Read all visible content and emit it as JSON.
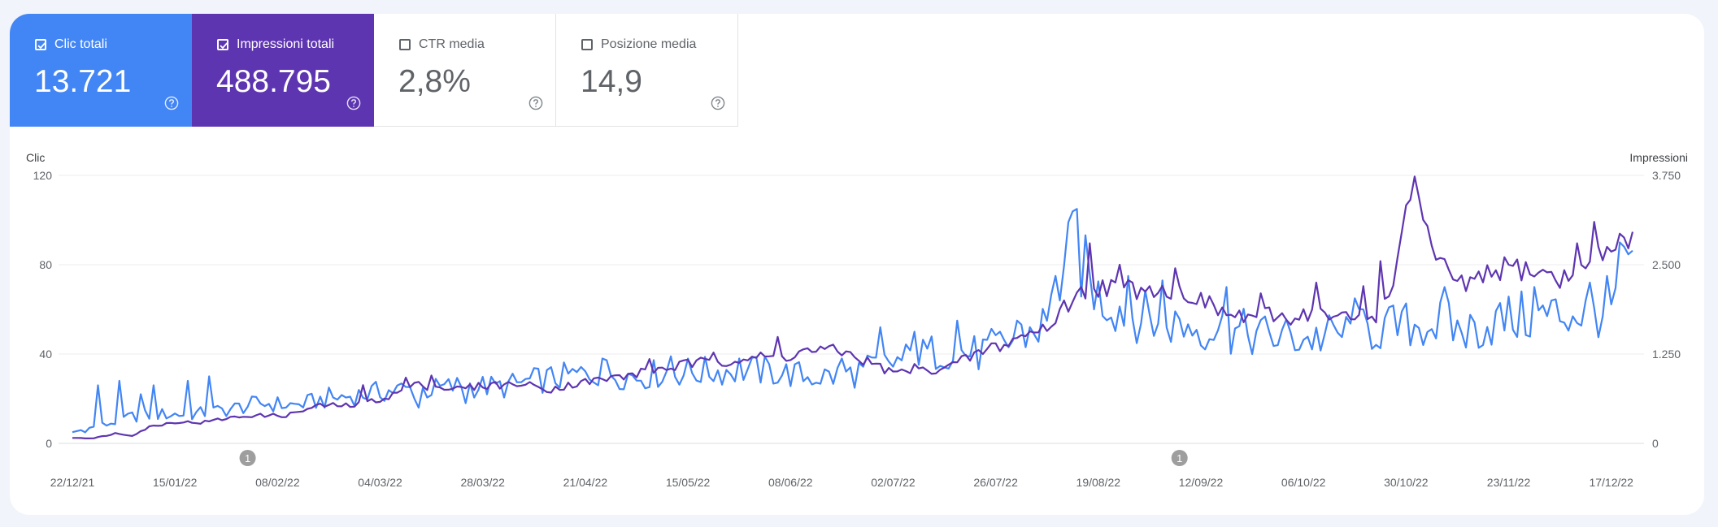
{
  "metrics": [
    {
      "label": "Clic totali",
      "value": "13.721",
      "checked": true,
      "color": "#4285f4"
    },
    {
      "label": "Impressioni totali",
      "value": "488.795",
      "checked": true,
      "color": "#5e35b1"
    },
    {
      "label": "CTR media",
      "value": "2,8%",
      "checked": false
    },
    {
      "label": "Posizione media",
      "value": "14,9",
      "checked": false
    }
  ],
  "chart_data": {
    "type": "line",
    "left_axis_title": "Clic",
    "right_axis_title": "Impressioni",
    "left_ticks": [
      "120",
      "80",
      "40",
      "0"
    ],
    "right_ticks": [
      "3.750",
      "2.500",
      "1.250",
      "0"
    ],
    "ylim_left": [
      0,
      120
    ],
    "ylim_right": [
      0,
      3750
    ],
    "x_labels": [
      "22/12/21",
      "15/01/22",
      "08/02/22",
      "04/03/22",
      "28/03/22",
      "21/04/22",
      "15/05/22",
      "08/06/22",
      "02/07/22",
      "26/07/22",
      "19/08/22",
      "12/09/22",
      "06/10/22",
      "30/10/22",
      "23/11/22",
      "17/12/22"
    ],
    "annotations": [
      {
        "label": "1",
        "date": "01/02/22"
      },
      {
        "label": "1",
        "date": "07/09/22"
      }
    ],
    "grid": true,
    "series": [
      {
        "name": "Clic totali",
        "axis": "left",
        "color": "#4285f4",
        "keypoints": [
          [
            0,
            5
          ],
          [
            7,
            8
          ],
          [
            14,
            12
          ],
          [
            21,
            13
          ],
          [
            28,
            13
          ],
          [
            36,
            15
          ],
          [
            44,
            18
          ],
          [
            52,
            17
          ],
          [
            60,
            20
          ],
          [
            68,
            22
          ],
          [
            76,
            24
          ],
          [
            84,
            24
          ],
          [
            92,
            26
          ],
          [
            100,
            25
          ],
          [
            108,
            28
          ],
          [
            116,
            30
          ],
          [
            124,
            32
          ],
          [
            132,
            30
          ],
          [
            140,
            32
          ],
          [
            148,
            32
          ],
          [
            156,
            33
          ],
          [
            164,
            32
          ],
          [
            172,
            30
          ],
          [
            180,
            30
          ],
          [
            188,
            34
          ],
          [
            196,
            38
          ],
          [
            204,
            42
          ],
          [
            212,
            40
          ],
          [
            220,
            46
          ],
          [
            228,
            54
          ],
          [
            234,
            88
          ],
          [
            240,
            66
          ],
          [
            248,
            58
          ],
          [
            256,
            54
          ],
          [
            264,
            52
          ],
          [
            272,
            50
          ],
          [
            280,
            48
          ],
          [
            290,
            47
          ],
          [
            300,
            50
          ],
          [
            310,
            52
          ],
          [
            318,
            54
          ],
          [
            326,
            50
          ],
          [
            334,
            55
          ],
          [
            342,
            57
          ],
          [
            350,
            58
          ],
          [
            360,
            60
          ],
          [
            365,
            85
          ]
        ],
        "spikes": [
          [
            6,
            26
          ],
          [
            11,
            28
          ],
          [
            16,
            22
          ],
          [
            19,
            26
          ],
          [
            27,
            28
          ],
          [
            32,
            30
          ],
          [
            60,
            25
          ],
          [
            81,
            16
          ],
          [
            92,
            18
          ],
          [
            124,
            38
          ],
          [
            140,
            39
          ],
          [
            156,
            38
          ],
          [
            180,
            38
          ],
          [
            189,
            52
          ],
          [
            197,
            50
          ],
          [
            207,
            55
          ],
          [
            217,
            50
          ],
          [
            221,
            55
          ],
          [
            230,
            75
          ],
          [
            235,
            105
          ],
          [
            247,
            75
          ],
          [
            255,
            73
          ],
          [
            270,
            70
          ],
          [
            300,
            65
          ],
          [
            321,
            70
          ],
          [
            342,
            70
          ],
          [
            355,
            72
          ],
          [
            359,
            75
          ],
          [
            362,
            90
          ]
        ]
      },
      {
        "name": "Impressioni totali",
        "axis": "right",
        "color": "#5e35b1",
        "keypoints": [
          [
            0,
            80
          ],
          [
            5,
            70
          ],
          [
            10,
            140
          ],
          [
            14,
            110
          ],
          [
            18,
            230
          ],
          [
            24,
            300
          ],
          [
            30,
            290
          ],
          [
            36,
            350
          ],
          [
            42,
            390
          ],
          [
            50,
            390
          ],
          [
            58,
            530
          ],
          [
            66,
            530
          ],
          [
            74,
            650
          ],
          [
            80,
            820
          ],
          [
            90,
            760
          ],
          [
            98,
            820
          ],
          [
            106,
            820
          ],
          [
            112,
            760
          ],
          [
            118,
            840
          ],
          [
            128,
            930
          ],
          [
            136,
            1020
          ],
          [
            144,
            1110
          ],
          [
            150,
            1140
          ],
          [
            158,
            1200
          ],
          [
            166,
            1200
          ],
          [
            172,
            1300
          ],
          [
            180,
            1290
          ],
          [
            186,
            1140
          ],
          [
            192,
            990
          ],
          [
            198,
            1000
          ],
          [
            206,
            1090
          ],
          [
            212,
            1260
          ],
          [
            218,
            1380
          ],
          [
            222,
            1500
          ],
          [
            226,
            1580
          ],
          [
            230,
            1710
          ],
          [
            236,
            2100
          ],
          [
            240,
            2200
          ],
          [
            250,
            2160
          ],
          [
            260,
            2130
          ],
          [
            266,
            1930
          ],
          [
            272,
            1760
          ],
          [
            278,
            1800
          ],
          [
            284,
            1760
          ],
          [
            290,
            1830
          ],
          [
            296,
            1750
          ],
          [
            302,
            1740
          ],
          [
            306,
            1830
          ],
          [
            310,
            2500
          ],
          [
            314,
            3770
          ],
          [
            318,
            2700
          ],
          [
            324,
            2150
          ],
          [
            330,
            2300
          ],
          [
            336,
            2480
          ],
          [
            342,
            2410
          ],
          [
            348,
            2270
          ],
          [
            354,
            2430
          ],
          [
            358,
            2650
          ],
          [
            362,
            2870
          ],
          [
            365,
            2800
          ]
        ],
        "spikes": [
          [
            68,
            815
          ],
          [
            78,
            920
          ],
          [
            84,
            950
          ],
          [
            104,
            800
          ],
          [
            116,
            850
          ],
          [
            135,
            1180
          ],
          [
            150,
            1270
          ],
          [
            165,
            1490
          ],
          [
            176,
            1320
          ],
          [
            197,
            1110
          ],
          [
            215,
            1400
          ],
          [
            232,
            2000
          ],
          [
            238,
            2800
          ],
          [
            245,
            2500
          ],
          [
            252,
            2200
          ],
          [
            258,
            2450
          ],
          [
            278,
            2100
          ],
          [
            291,
            2250
          ],
          [
            302,
            2200
          ],
          [
            306,
            2550
          ],
          [
            325,
            2350
          ],
          [
            336,
            2500
          ],
          [
            346,
            2400
          ],
          [
            352,
            2800
          ],
          [
            356,
            3100
          ],
          [
            359,
            2750
          ]
        ]
      }
    ]
  }
}
